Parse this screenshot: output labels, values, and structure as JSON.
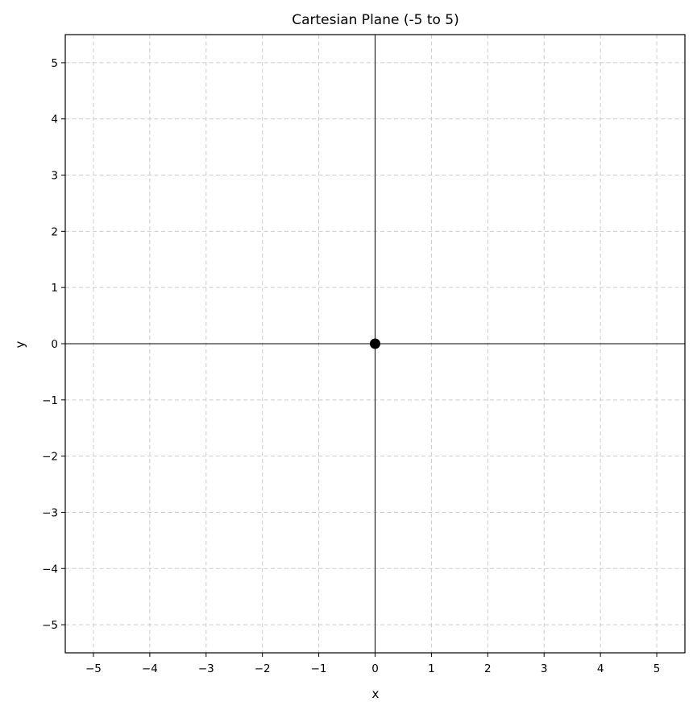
{
  "chart_data": {
    "type": "scatter",
    "title": "Cartesian Plane (-5 to 5)",
    "xlabel": "x",
    "ylabel": "y",
    "xlim": [
      -5.5,
      5.5
    ],
    "ylim": [
      -5.5,
      5.5
    ],
    "x_ticks": [
      -5,
      -4,
      -3,
      -2,
      -1,
      0,
      1,
      2,
      3,
      4,
      5
    ],
    "y_ticks": [
      -5,
      -4,
      -3,
      -2,
      -1,
      0,
      1,
      2,
      3,
      4,
      5
    ],
    "x_tick_labels": [
      "−5",
      "−4",
      "−3",
      "−2",
      "−1",
      "0",
      "1",
      "2",
      "3",
      "4",
      "5"
    ],
    "y_tick_labels": [
      "−5",
      "−4",
      "−3",
      "−2",
      "−1",
      "0",
      "1",
      "2",
      "3",
      "4",
      "5"
    ],
    "grid": true,
    "grid_style": "dashed",
    "grid_color": "#cccccc",
    "axis_lines_through_origin": true,
    "points": [
      {
        "x": 0,
        "y": 0,
        "color": "#000000"
      }
    ]
  }
}
